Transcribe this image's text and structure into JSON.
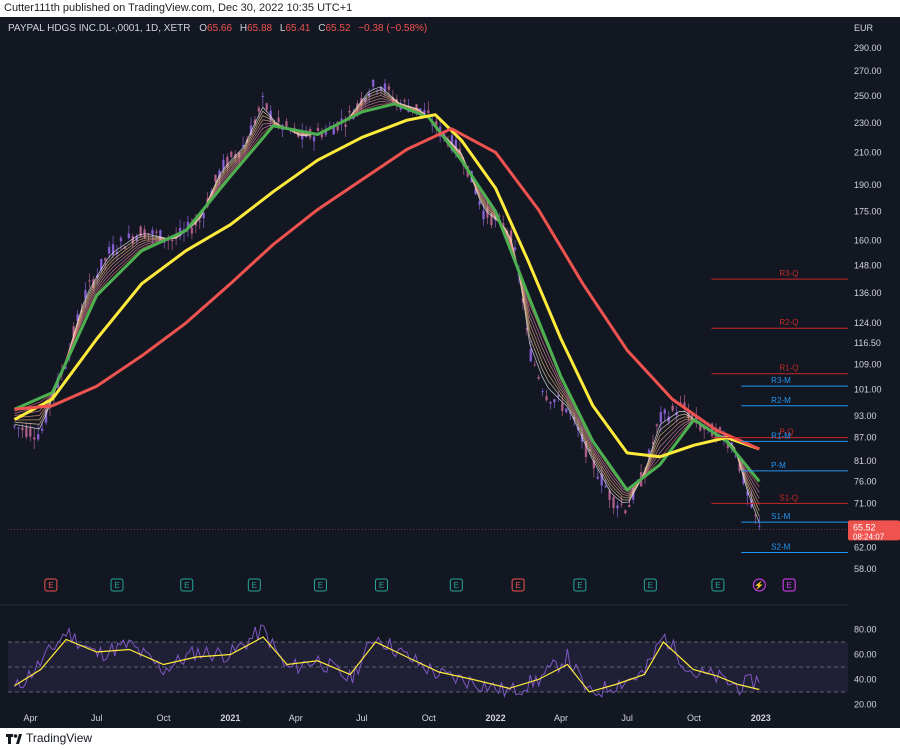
{
  "header": {
    "publisher": "Cutter111th published on TradingView.com, Dec 30, 2022 10:35 UTC+1"
  },
  "legend": {
    "symbol": "PAYPAL HDGS INC.DL-,0001, 1D, XETR",
    "o_label": "O",
    "o_value": "65.66",
    "h_label": "H",
    "h_value": "65.88",
    "l_label": "L",
    "l_value": "65.41",
    "c_label": "C",
    "c_value": "65.52",
    "change": "−0.38 (−0.58%)"
  },
  "footer": {
    "brand": "TradingView"
  },
  "colors": {
    "background": "#131722",
    "candle_up": "#9a6cf0",
    "candle_down": "#c96a9a",
    "ema_green": "#4caf50",
    "ema_yellow": "#ffeb3b",
    "ema_red": "#ef5350",
    "pivot_red": "#c62828",
    "pivot_blue": "#2196f3",
    "rsi_line": "#7e57c2",
    "rsi_ma": "#ffeb3b",
    "price_tag": "#ef5350"
  },
  "chart_data": [
    {
      "type": "line",
      "title": "",
      "currency": "EUR",
      "price_scale": "log",
      "ylim": [
        54,
        300
      ],
      "y_ticks": [
        "290.00",
        "270.00",
        "250.00",
        "230.00",
        "210.00",
        "190.00",
        "175.00",
        "160.00",
        "148.00",
        "136.00",
        "124.00",
        "116.50",
        "109.00",
        "101.00",
        "93.00",
        "87.00",
        "81.00",
        "76.00",
        "71.00",
        "62.00",
        "58.00"
      ],
      "x_ticks": [
        "Apr",
        "Jul",
        "Oct",
        "2021",
        "Apr",
        "Jul",
        "Oct",
        "2022",
        "Apr",
        "Jul",
        "Oct",
        "2023"
      ],
      "x_range": [
        "2020-03-01",
        "2023-05-01"
      ],
      "grid": false,
      "last_price": {
        "value": "65.52",
        "countdown": "08:24:07"
      },
      "series": [
        {
          "x": [
            "2020-03-10",
            "2020-04-15",
            "2020-05-20",
            "2020-06-15",
            "2020-07-20",
            "2020-09-01",
            "2020-10-15",
            "2020-11-20",
            "2020-12-20",
            "2021-01-20",
            "2021-02-15",
            "2021-03-05",
            "2021-04-10",
            "2021-05-15",
            "2021-06-15",
            "2021-07-10",
            "2021-07-26",
            "2021-08-20",
            "2021-09-20",
            "2021-10-15",
            "2021-11-15",
            "2021-12-15",
            "2022-01-20",
            "2022-02-05",
            "2022-02-15",
            "2022-03-10",
            "2022-04-10",
            "2022-05-10",
            "2022-06-10",
            "2022-07-01",
            "2022-07-25",
            "2022-08-15",
            "2022-09-15",
            "2022-10-10",
            "2022-11-05",
            "2022-11-25",
            "2022-12-15",
            "2022-12-30"
          ],
          "values": [
            90,
            88,
            110,
            135,
            155,
            165,
            160,
            170,
            200,
            215,
            245,
            230,
            220,
            225,
            235,
            255,
            260,
            245,
            240,
            225,
            210,
            175,
            165,
            140,
            115,
            100,
            95,
            82,
            72,
            70,
            78,
            92,
            96,
            90,
            88,
            85,
            72,
            65.52
          ]
        },
        {
          "name": "",
          "color": "ema_green",
          "x": [
            "2020-03-10",
            "2020-05-01",
            "2020-07-01",
            "2020-09-01",
            "2020-11-01",
            "2021-01-01",
            "2021-03-01",
            "2021-05-01",
            "2021-07-01",
            "2021-08-15",
            "2021-10-01",
            "2021-11-15",
            "2022-01-01",
            "2022-02-15",
            "2022-04-01",
            "2022-05-15",
            "2022-07-01",
            "2022-08-15",
            "2022-10-01",
            "2022-11-15",
            "2022-12-30"
          ],
          "values": [
            95,
            100,
            135,
            155,
            165,
            195,
            228,
            222,
            238,
            244,
            234,
            205,
            175,
            135,
            105,
            86,
            74,
            80,
            92,
            86,
            76
          ]
        },
        {
          "name": "",
          "color": "ema_yellow",
          "x": [
            "2020-03-10",
            "2020-05-01",
            "2020-07-01",
            "2020-09-01",
            "2020-11-01",
            "2021-01-01",
            "2021-03-01",
            "2021-05-01",
            "2021-07-01",
            "2021-09-01",
            "2021-10-10",
            "2021-11-15",
            "2022-01-01",
            "2022-02-15",
            "2022-04-01",
            "2022-05-15",
            "2022-07-01",
            "2022-08-15",
            "2022-10-01",
            "2022-11-15",
            "2022-12-30"
          ],
          "values": [
            92,
            98,
            118,
            140,
            155,
            168,
            186,
            205,
            220,
            232,
            236,
            218,
            188,
            150,
            118,
            96,
            83,
            82,
            85,
            87,
            84
          ]
        },
        {
          "name": "",
          "color": "ema_red",
          "x": [
            "2020-03-10",
            "2020-05-01",
            "2020-07-01",
            "2020-09-01",
            "2020-11-01",
            "2021-01-01",
            "2021-03-01",
            "2021-05-01",
            "2021-07-01",
            "2021-09-01",
            "2021-11-01",
            "2022-01-01",
            "2022-03-01",
            "2022-05-01",
            "2022-07-01",
            "2022-09-01",
            "2022-11-01",
            "2022-12-30"
          ],
          "values": [
            95,
            96,
            102,
            112,
            124,
            140,
            158,
            176,
            193,
            212,
            226,
            210,
            176,
            140,
            114,
            98,
            89,
            84
          ]
        }
      ],
      "pivots": [
        {
          "label": "R3-Q",
          "value": 142,
          "color": "pivot_red"
        },
        {
          "label": "R2-Q",
          "value": 122,
          "color": "pivot_red"
        },
        {
          "label": "R1-Q",
          "value": 106,
          "color": "pivot_red"
        },
        {
          "label": "R3-M",
          "value": 102,
          "color": "pivot_blue"
        },
        {
          "label": "R2-M",
          "value": 96,
          "color": "pivot_blue"
        },
        {
          "label": "P-Q",
          "value": 87,
          "color": "pivot_red"
        },
        {
          "label": "R1-M",
          "value": 86,
          "color": "pivot_blue"
        },
        {
          "label": "P-M",
          "value": 78.5,
          "color": "pivot_blue"
        },
        {
          "label": "S1-Q",
          "value": 71,
          "color": "pivot_red"
        },
        {
          "label": "S1-M",
          "value": 67,
          "color": "pivot_blue"
        },
        {
          "label": "S2-M",
          "value": 61,
          "color": "pivot_blue"
        }
      ],
      "earnings_markers": [
        {
          "label": "E",
          "date": "2020-04-29",
          "color": "red"
        },
        {
          "label": "E",
          "date": "2020-07-29",
          "color": "teal"
        },
        {
          "label": "E",
          "date": "2020-11-02",
          "color": "teal"
        },
        {
          "label": "E",
          "date": "2021-02-03",
          "color": "teal"
        },
        {
          "label": "E",
          "date": "2021-05-05",
          "color": "teal"
        },
        {
          "label": "E",
          "date": "2021-07-28",
          "color": "teal"
        },
        {
          "label": "E",
          "date": "2021-11-08",
          "color": "teal"
        },
        {
          "label": "E",
          "date": "2022-02-01",
          "color": "red"
        },
        {
          "label": "E",
          "date": "2022-04-27",
          "color": "teal"
        },
        {
          "label": "E",
          "date": "2022-08-02",
          "color": "teal"
        },
        {
          "label": "E",
          "date": "2022-11-03",
          "color": "teal"
        },
        {
          "label": "⚡",
          "date": "2022-12-30",
          "color": "purple"
        },
        {
          "label": "E",
          "date": "2023-02-09",
          "color": "purple"
        }
      ]
    },
    {
      "type": "line",
      "title": "",
      "ylim": [
        10,
        90
      ],
      "y_ticks": [
        "80.00",
        "60.00",
        "40.00",
        "20.00"
      ],
      "band": [
        30,
        70
      ],
      "midline": 50,
      "series": [
        {
          "name": "",
          "color": "rsi_line",
          "x": [
            "2020-03-10",
            "2020-04-10",
            "2020-05-20",
            "2020-07-01",
            "2020-08-15",
            "2020-10-01",
            "2020-11-15",
            "2021-01-01",
            "2021-02-15",
            "2021-03-20",
            "2021-05-01",
            "2021-06-15",
            "2021-07-20",
            "2021-09-01",
            "2021-10-15",
            "2021-12-01",
            "2022-01-20",
            "2022-03-01",
            "2022-04-10",
            "2022-05-10",
            "2022-06-15",
            "2022-07-25",
            "2022-08-20",
            "2022-09-30",
            "2022-11-01",
            "2022-12-01",
            "2022-12-30"
          ],
          "values": [
            32,
            50,
            78,
            60,
            68,
            48,
            62,
            60,
            80,
            48,
            56,
            40,
            75,
            58,
            44,
            38,
            30,
            40,
            58,
            28,
            36,
            45,
            75,
            45,
            42,
            34,
            40
          ]
        },
        {
          "name": "",
          "color": "rsi_ma",
          "x": [
            "2020-03-10",
            "2020-04-15",
            "2020-05-20",
            "2020-07-01",
            "2020-08-15",
            "2020-10-01",
            "2020-11-15",
            "2021-01-01",
            "2021-02-15",
            "2021-03-20",
            "2021-05-01",
            "2021-06-15",
            "2021-07-20",
            "2021-09-01",
            "2021-10-15",
            "2021-12-01",
            "2022-01-20",
            "2022-03-01",
            "2022-04-10",
            "2022-05-10",
            "2022-06-15",
            "2022-07-25",
            "2022-08-20",
            "2022-09-30",
            "2022-11-01",
            "2022-12-01",
            "2022-12-30"
          ],
          "values": [
            35,
            48,
            72,
            62,
            64,
            52,
            58,
            60,
            74,
            52,
            55,
            44,
            70,
            58,
            46,
            40,
            33,
            40,
            52,
            30,
            36,
            44,
            70,
            48,
            43,
            36,
            32
          ]
        }
      ]
    }
  ]
}
